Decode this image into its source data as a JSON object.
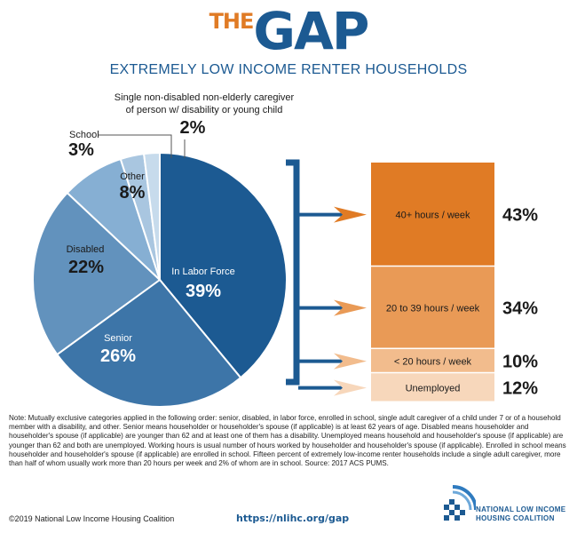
{
  "header": {
    "logo_the": "THE",
    "logo_gap": "GAP",
    "subtitle": "EXTREMELY LOW INCOME RENTER HOUSEHOLDS"
  },
  "chart_data": [
    {
      "type": "pie",
      "slices": [
        {
          "label": "In Labor Force",
          "value": 39,
          "color": "#1c5a92",
          "text_color": "#ffffff"
        },
        {
          "label": "Senior",
          "value": 26,
          "color": "#3d75a8",
          "text_color": "#ffffff"
        },
        {
          "label": "Disabled",
          "value": 22,
          "color": "#6292bd",
          "text_color": "#1a1a1a"
        },
        {
          "label": "Other",
          "value": 8,
          "color": "#86afd3",
          "text_color": "#1a1a1a"
        },
        {
          "label": "School",
          "value": 3,
          "color": "#a9c6e0",
          "text_color": "#1a1a1a"
        },
        {
          "label": "Single non-disabled non-elderly caregiver of person w/ disability or young child",
          "value": 2,
          "color": "#c7dbec",
          "text_color": "#1a1a1a"
        }
      ],
      "slice_labels": {
        "in_labor_force": {
          "label": "In Labor Force",
          "value": "39%"
        },
        "senior": {
          "label": "Senior",
          "value": "26%"
        },
        "disabled": {
          "label": "Disabled",
          "value": "22%"
        },
        "other": {
          "label": "Other",
          "value": "8%"
        },
        "school": {
          "label": "School",
          "value": "3%"
        },
        "caregiver": {
          "line1": "Single non-disabled non-elderly caregiver",
          "line2": "of person w/ disability or young child",
          "value": "2%"
        }
      }
    },
    {
      "type": "bar",
      "stacked": true,
      "categories": [
        "40+ hours / week",
        "20 to 39 hours / week",
        "< 20 hours / week",
        "Unemployed"
      ],
      "values": [
        43,
        34,
        10,
        12
      ],
      "value_labels": [
        "43%",
        "34%",
        "10%",
        "12%"
      ],
      "colors": [
        "#e07b25",
        "#e99a56",
        "#f2bc8d",
        "#f7d7bb"
      ]
    }
  ],
  "note": "Note: Mutually exclusive categories applied in the following order: senior, disabled, in labor force, enrolled in school, single adult caregiver of a child under 7 or of a household member with a disability, and other. Senior means householder or householder's spouse (if applicable) is at least 62 years of age. Disabled means householder and householder's spouse (if applicable) are younger than 62 and at least one of them has a disability. Unemployed means household and householder's spouse (if applicable) are younger than 62 and both are unemployed. Working hours is usual number of hours worked by householder and householder's spouse (if applicable). Enrolled in school means householder and householder's spouse (if applicable) are enrolled in school. Fifteen percent of extremely low-income renter households include a single adult caregiver, more than half of whom usually work more than 20 hours per week and 2% of whom are in school. Source: 2017 ACS PUMS.",
  "footer": {
    "copyright": "©2019 National Low Income Housing Coalition",
    "url": "https://nlihc.org/gap",
    "org_line1": "NATIONAL LOW INCOME",
    "org_line2": "HOUSING COALITION"
  }
}
